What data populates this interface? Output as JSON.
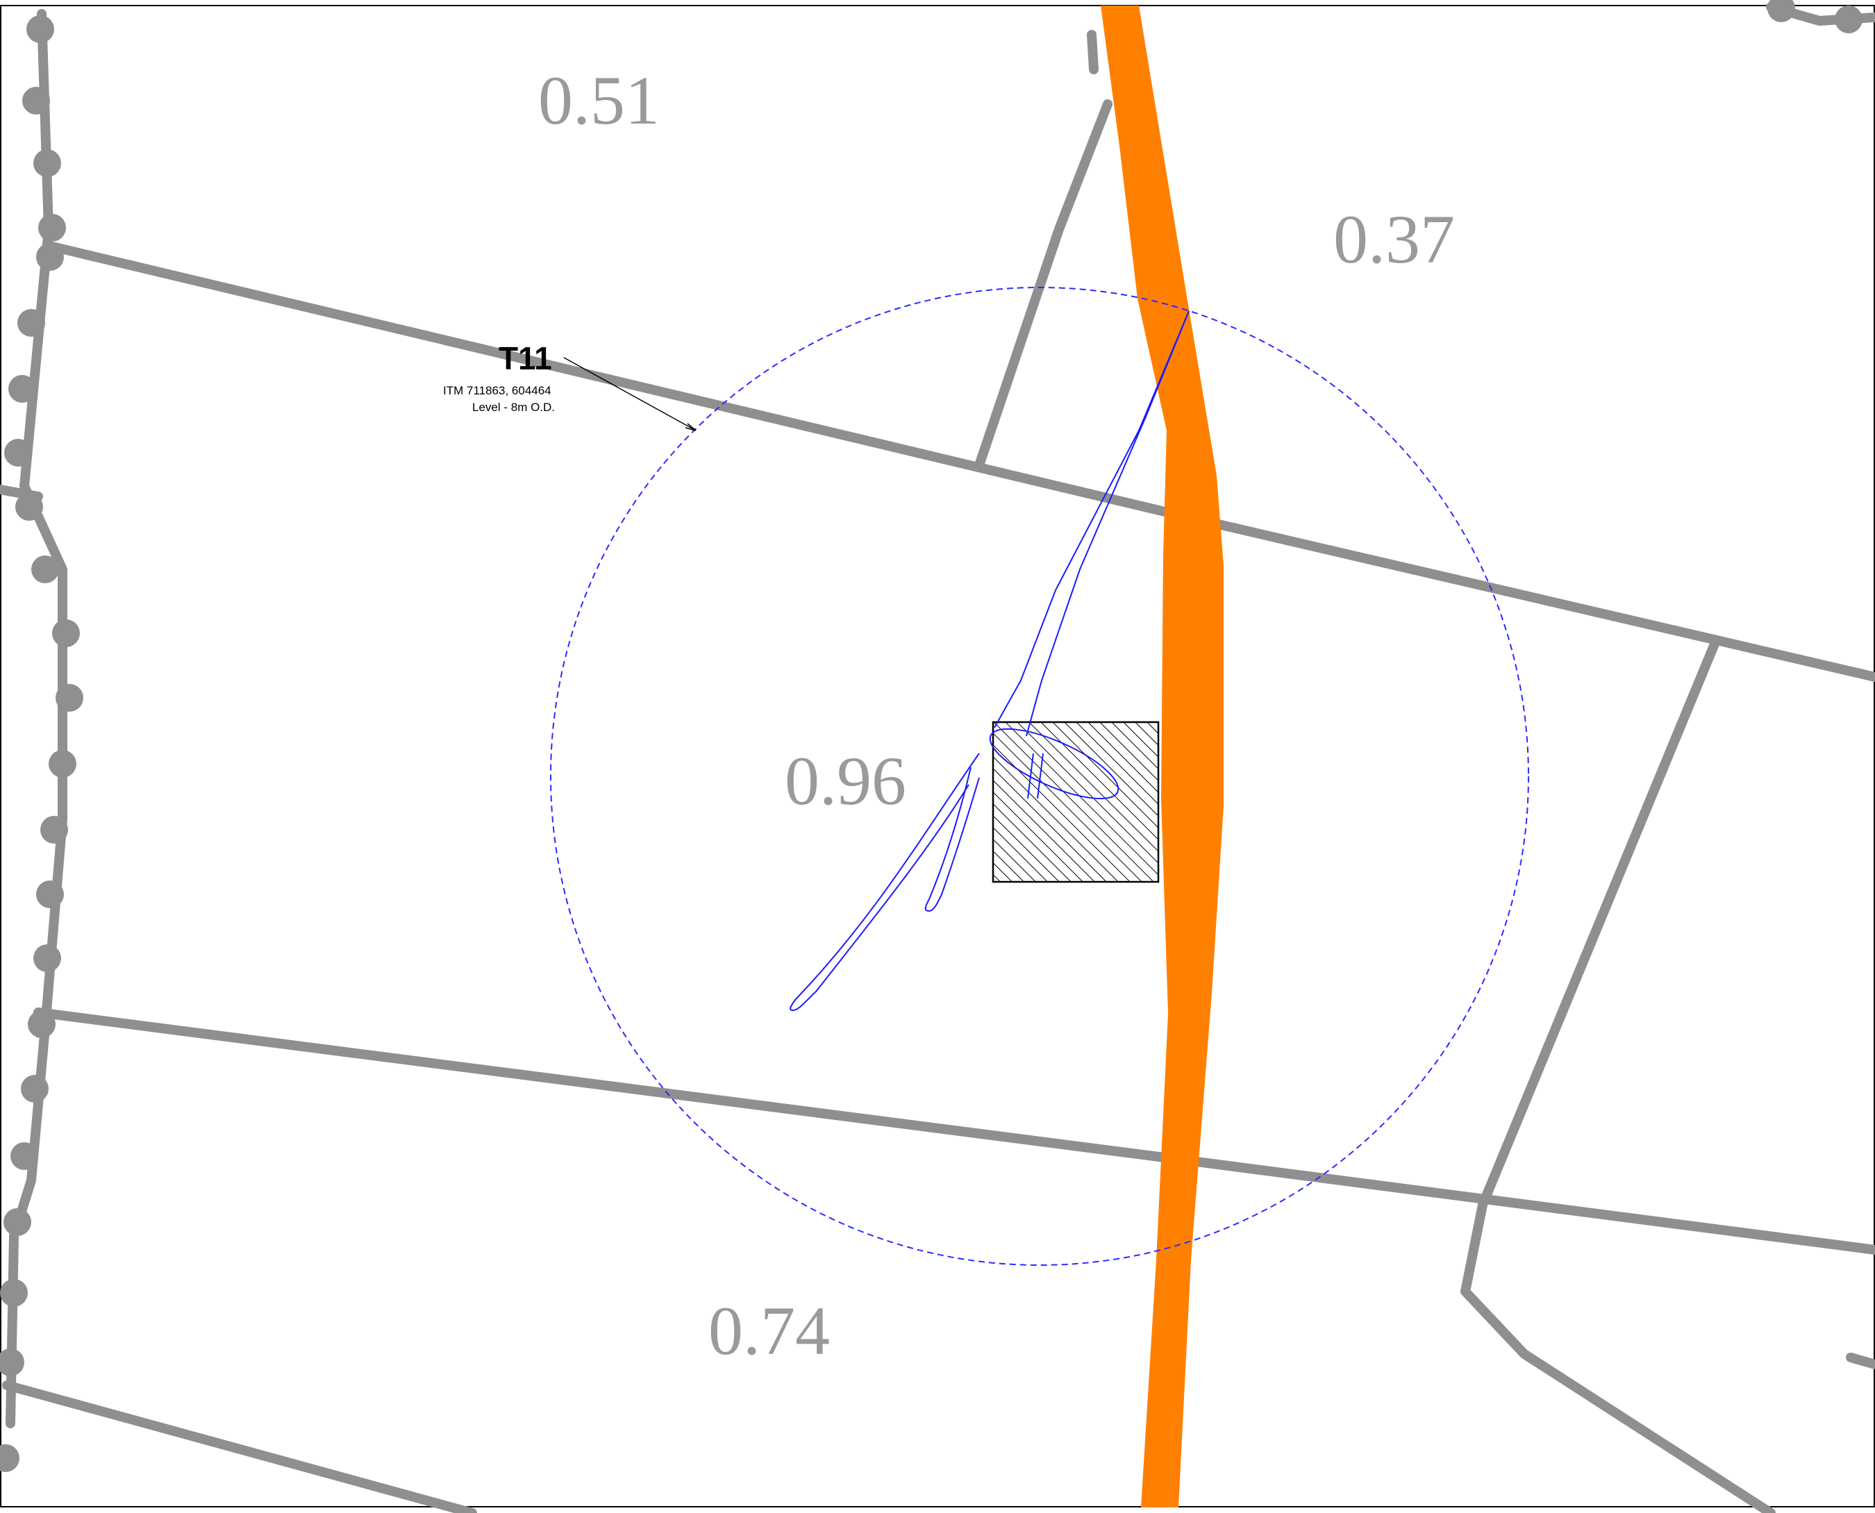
{
  "turbine": {
    "id": "T11",
    "coordinates": "ITM 711863, 604464",
    "level": "Level - 8m O.D."
  },
  "parcels": [
    {
      "label": "0.51"
    },
    {
      "label": "0.37"
    },
    {
      "label": "0.96"
    },
    {
      "label": "0.74"
    }
  ],
  "colors": {
    "boundary": "#8f8f8f",
    "route": "#ff8000",
    "buffer": "#2b2bff",
    "blade_path": "#1a1aff",
    "platform": "#000000",
    "frame": "#000000"
  },
  "icons": {
    "hedgerow_nodes": "filled-circle",
    "platform_fill": "diagonal-hatch"
  }
}
